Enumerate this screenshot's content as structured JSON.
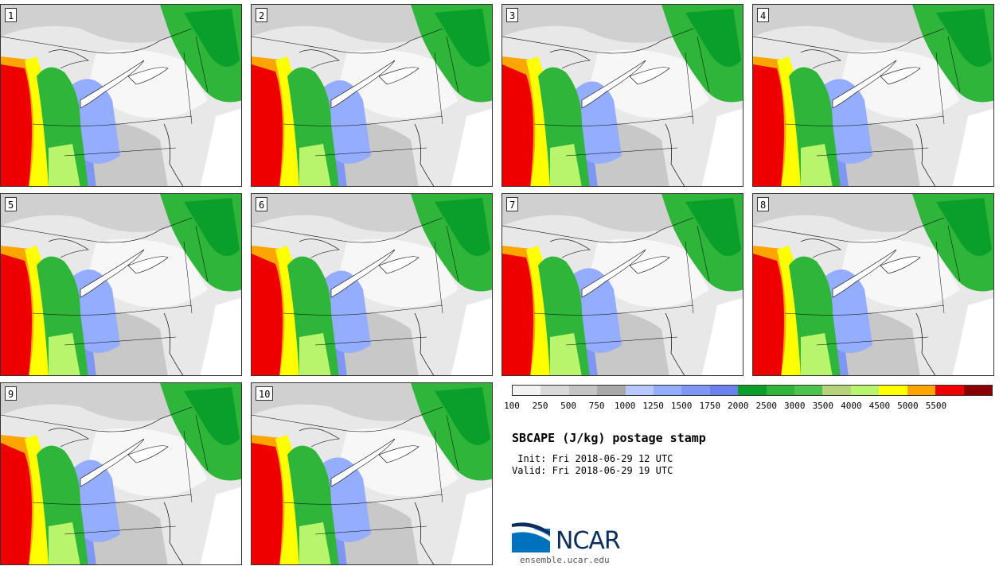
{
  "panels": [
    {
      "label": "1"
    },
    {
      "label": "2"
    },
    {
      "label": "3"
    },
    {
      "label": "4"
    },
    {
      "label": "5"
    },
    {
      "label": "6"
    },
    {
      "label": "7"
    },
    {
      "label": "8"
    },
    {
      "label": "9"
    },
    {
      "label": "10"
    }
  ],
  "colorbar": {
    "colors": [
      "#f2f2f2",
      "#d9d9d9",
      "#c4c4c4",
      "#a8a8a8",
      "#b7c8ff",
      "#94adff",
      "#7f96f5",
      "#6b82ee",
      "#0a9e2a",
      "#2eb53a",
      "#4cc34c",
      "#b6d27a",
      "#b8f56c",
      "#ffff00",
      "#ffa500",
      "#ee0000",
      "#8b0000"
    ],
    "tick_labels": [
      "100",
      "250",
      "500",
      "750",
      "1000",
      "1250",
      "1500",
      "1750",
      "2000",
      "2500",
      "3000",
      "3500",
      "4000",
      "4500",
      "5000",
      "5500"
    ]
  },
  "title": "SBCAPE (J/kg) postage stamp",
  "init": " Init: Fri 2018-06-29 12 UTC",
  "valid": "Valid: Fri 2018-06-29 19 UTC",
  "logo": {
    "text": "NCAR",
    "url": "ensemble.ucar.edu",
    "colors": {
      "blue": "#0071bc",
      "navy": "#0d2e5c"
    }
  }
}
